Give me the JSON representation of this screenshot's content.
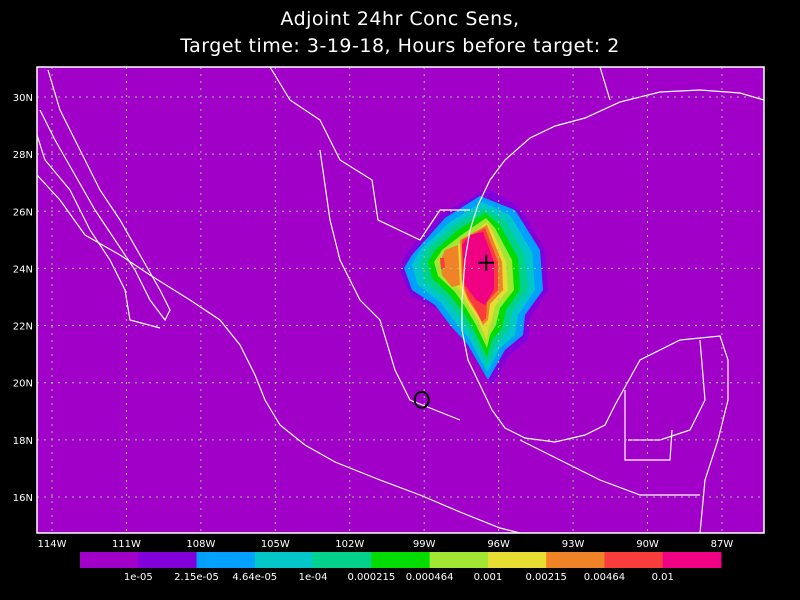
{
  "title": {
    "line1": "Adjoint 24hr Conc Sens,",
    "line2": "Target time: 3-19-18, Hours before target: 2"
  },
  "map": {
    "background_color": "#a000c8",
    "coastline_color": "#ffffff",
    "grid_color": "#9ccc8c",
    "longitude_labels": [
      "114W",
      "111W",
      "108W",
      "105W",
      "102W",
      "99W",
      "96W",
      "93W",
      "90W",
      "87W"
    ],
    "latitude_labels": [
      "30N",
      "28N",
      "26N",
      "24N",
      "22N",
      "20N",
      "18N",
      "16N"
    ],
    "markers": [
      {
        "type": "cross-icon",
        "lon": -96.5,
        "lat": 24.2
      },
      {
        "type": "circle-icon",
        "lon": -99.1,
        "lat": 19.4
      }
    ]
  },
  "colorbar": {
    "colors": [
      "#a000c8",
      "#8200dc",
      "#00a0ff",
      "#00c8c8",
      "#00d28c",
      "#00dc00",
      "#a0e632",
      "#e6dc32",
      "#f08228",
      "#fa3c3c",
      "#f00082"
    ],
    "labels": [
      "1e-05",
      "2.15e-05",
      "4.64e-05",
      "1e-04",
      "0.000215",
      "0.000464",
      "0.001",
      "0.00215",
      "0.00464",
      "0.01"
    ]
  }
}
